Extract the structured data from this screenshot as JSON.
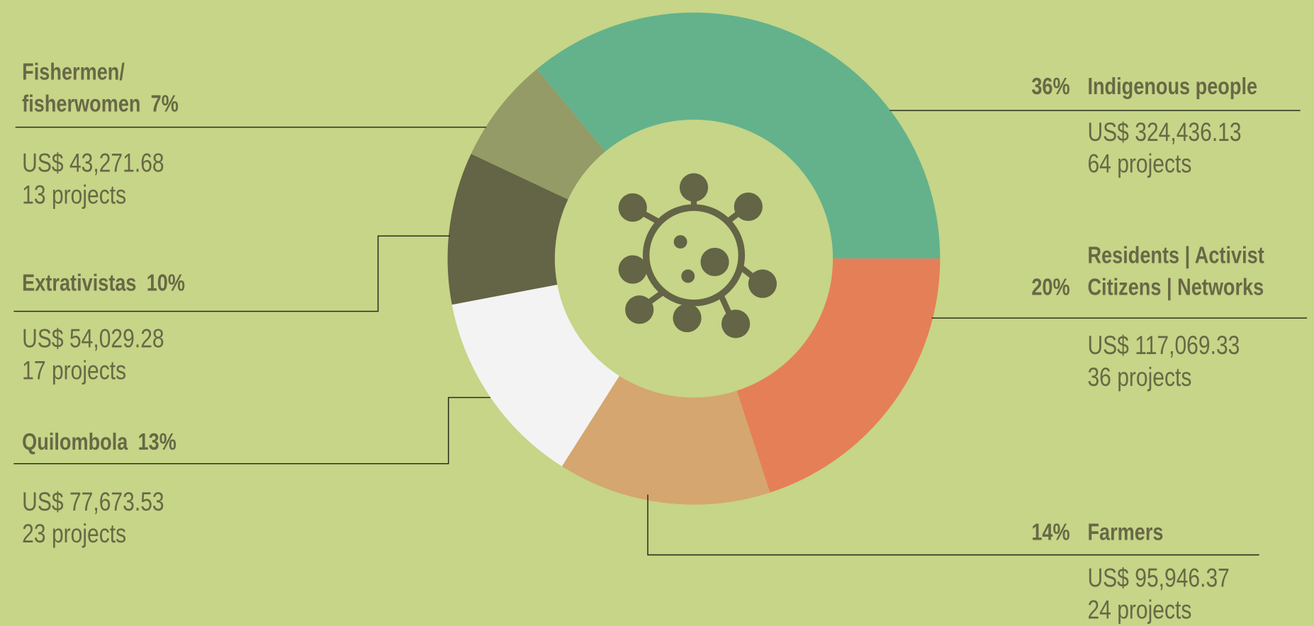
{
  "chart_data": {
    "type": "donut",
    "categories": [
      "Indigenous people",
      "Residents | Activist\nCitizens | Networks",
      "Farmers",
      "Quilombola",
      "Extrativistas",
      "Fishermen/\nfisherwomen"
    ],
    "values": [
      36,
      20,
      14,
      13,
      10,
      7
    ],
    "value_labels": [
      "36%",
      "20%",
      "14%",
      "13%",
      "10%",
      "7%"
    ],
    "colors": [
      "#63b28c",
      "#e57f58",
      "#d5a66f",
      "#f3f3f3",
      "#646446",
      "#949b66"
    ],
    "amounts": [
      "US$ 324,436.13",
      "US$ 117,069.33",
      "US$ 95,946.37",
      "US$ 77,673.53",
      "US$ 54,029.28",
      "US$ 43,271.68"
    ],
    "projects": [
      "64 projects",
      "36 projects",
      "24 projects",
      "23 projects",
      "17 projects",
      "13 projects"
    ]
  }
}
